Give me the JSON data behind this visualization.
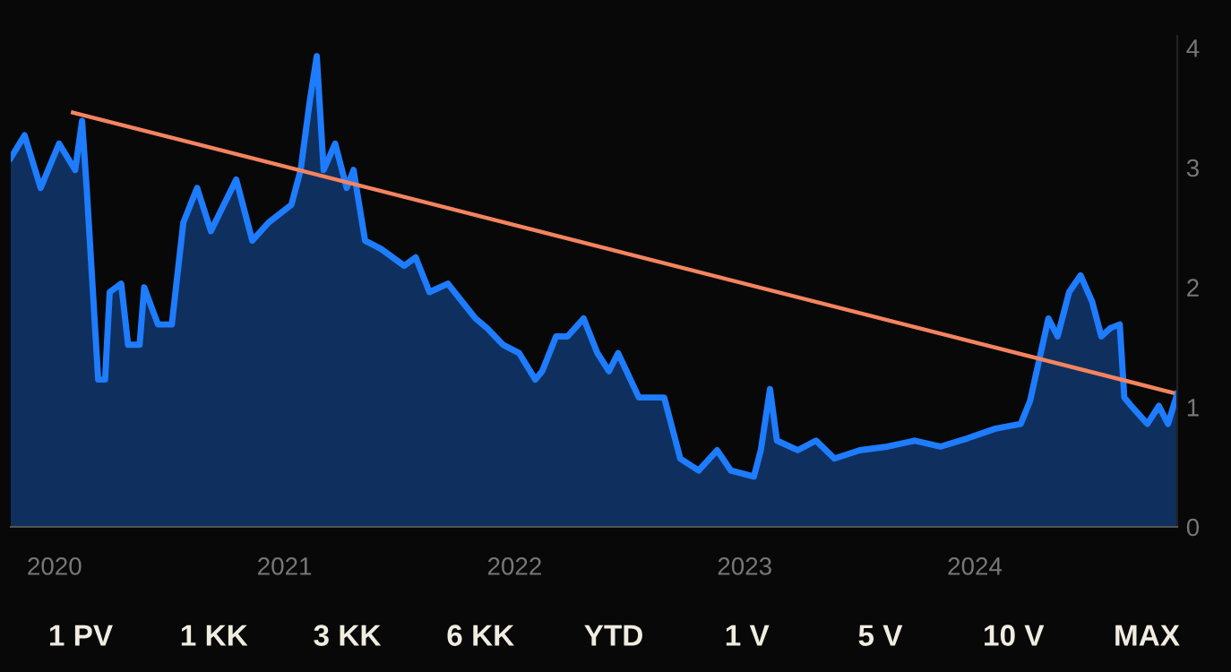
{
  "chart_data": {
    "type": "area",
    "x": [
      2019.81,
      2019.87,
      2019.94,
      2020.02,
      2020.09,
      2020.12,
      2020.14,
      2020.19,
      2020.22,
      2020.24,
      2020.29,
      2020.32,
      2020.37,
      2020.39,
      2020.45,
      2020.51,
      2020.56,
      2020.62,
      2020.68,
      2020.79,
      2020.86,
      2020.93,
      2021.03,
      2021.07,
      2021.11,
      2021.14,
      2021.17,
      2021.22,
      2021.27,
      2021.3,
      2021.35,
      2021.42,
      2021.52,
      2021.57,
      2021.63,
      2021.71,
      2021.83,
      2021.88,
      2021.95,
      2022.02,
      2022.09,
      2022.12,
      2022.18,
      2022.23,
      2022.3,
      2022.36,
      2022.41,
      2022.45,
      2022.54,
      2022.65,
      2022.72,
      2022.8,
      2022.88,
      2022.94,
      2023.04,
      2023.07,
      2023.11,
      2023.14,
      2023.23,
      2023.31,
      2023.39,
      2023.5,
      2023.62,
      2023.74,
      2023.85,
      2023.97,
      2024.09,
      2024.2,
      2024.24,
      2024.32,
      2024.36,
      2024.41,
      2024.46,
      2024.51,
      2024.55,
      2024.59,
      2024.63,
      2024.65,
      2024.68,
      2024.75,
      2024.8,
      2024.84,
      2024.88
    ],
    "series": [
      {
        "color": "#1e7cff",
        "values": [
          3.08,
          3.27,
          2.83,
          3.2,
          2.98,
          3.39,
          2.83,
          1.23,
          1.23,
          1.96,
          2.03,
          1.52,
          1.52,
          2.0,
          1.69,
          1.69,
          2.54,
          2.83,
          2.47,
          2.9,
          2.39,
          2.54,
          2.69,
          2.98,
          3.56,
          3.93,
          2.98,
          3.2,
          2.83,
          2.98,
          2.39,
          2.32,
          2.18,
          2.25,
          1.96,
          2.03,
          1.74,
          1.66,
          1.52,
          1.45,
          1.23,
          1.3,
          1.59,
          1.59,
          1.74,
          1.45,
          1.3,
          1.45,
          1.08,
          1.08,
          0.57,
          0.47,
          0.64,
          0.47,
          0.42,
          0.64,
          1.15,
          0.72,
          0.64,
          0.72,
          0.57,
          0.64,
          0.67,
          0.72,
          0.67,
          0.74,
          0.82,
          0.86,
          1.05,
          1.74,
          1.59,
          1.96,
          2.1,
          1.88,
          1.59,
          1.66,
          1.69,
          1.08,
          1.01,
          0.86,
          1.01,
          0.86,
          1.11
        ]
      },
      {
        "type": "line",
        "color": "#f4845f",
        "x": [
          2020.08,
          2024.86
        ],
        "values": [
          3.46,
          1.12
        ]
      }
    ],
    "xlim": [
      2019.81,
      2024.88
    ],
    "xticks": [
      2020,
      2021,
      2022,
      2023,
      2024
    ],
    "ylim": [
      0,
      4.1
    ],
    "yticks": [
      0,
      1,
      2,
      3,
      4
    ],
    "grid": false,
    "legend": false,
    "annotations": [
      "1 PV",
      "1 KK",
      "3 KK",
      "6 KK",
      "YTD",
      "1 V",
      "5 V",
      "10 V",
      "MAX"
    ]
  }
}
